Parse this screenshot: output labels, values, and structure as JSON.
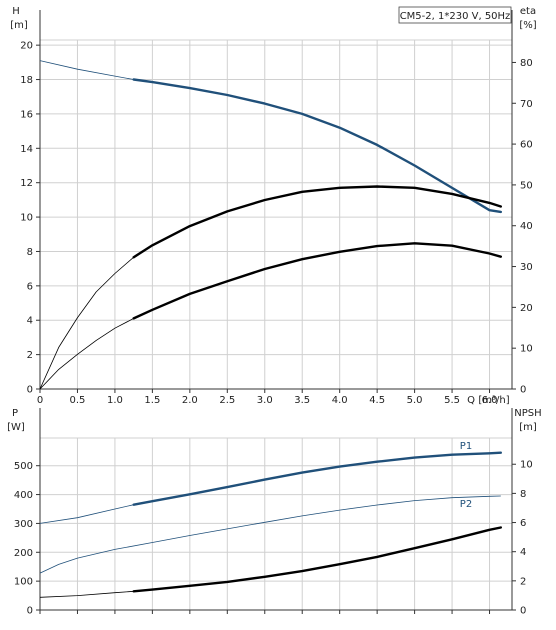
{
  "chart_data": [
    {
      "type": "line",
      "legend_box": "CM5-2, 1*230 V, 50Hz",
      "xlabel": "Q",
      "xunit": "[m³/h]",
      "xlim": [
        0,
        6.3
      ],
      "xticks": [
        0,
        0.5,
        1.0,
        1.5,
        2.0,
        2.5,
        3.0,
        3.5,
        4.0,
        4.5,
        5.0,
        5.5,
        6.0
      ],
      "xtick_labels": [
        "0",
        "0.5",
        "1.0",
        "1.5",
        "2.0",
        "2.5",
        "3.0",
        "3.5",
        "4.0",
        "4.5",
        "5.0",
        "5.5",
        "6.0"
      ],
      "y_left": {
        "label": "H",
        "unit": "[m]",
        "lim": [
          0,
          20.3
        ],
        "ticks": [
          0,
          2,
          4,
          6,
          8,
          10,
          12,
          14,
          16,
          18,
          20
        ]
      },
      "y_right": {
        "label": "eta",
        "unit": "[%]",
        "lim": [
          0,
          85.5
        ],
        "ticks": [
          0,
          10,
          20,
          30,
          40,
          50,
          60,
          70,
          80
        ]
      },
      "grid": true,
      "series": [
        {
          "axis": "left",
          "color": "#20507a",
          "x": [
            0,
            0.5,
            1.0,
            1.25,
            1.5,
            2.0,
            2.5,
            3.0,
            3.5,
            4.0,
            4.5,
            5.0,
            5.5,
            6.0,
            6.15
          ],
          "y": [
            19.1,
            18.6,
            18.2,
            18.0,
            17.85,
            17.5,
            17.1,
            16.6,
            16.0,
            15.2,
            14.2,
            13.0,
            11.7,
            10.4,
            10.3
          ],
          "operating_range": [
            1.25,
            6.15
          ]
        },
        {
          "axis": "right",
          "x": [
            0,
            0.25,
            0.5,
            0.75,
            1.0,
            1.25,
            1.5,
            2.0,
            2.5,
            3.0,
            3.5,
            4.0,
            4.5,
            5.0,
            5.5,
            6.0,
            6.15
          ],
          "y": [
            0,
            10.2,
            17.5,
            23.8,
            28.3,
            32.3,
            35.2,
            39.9,
            43.5,
            46.3,
            48.3,
            49.3,
            49.6,
            49.3,
            47.8,
            45.6,
            44.7
          ],
          "operating_range": [
            1.25,
            6.15
          ]
        },
        {
          "axis": "right",
          "x": [
            0,
            0.25,
            0.5,
            0.75,
            1.0,
            1.25,
            1.5,
            2.0,
            2.5,
            3.0,
            3.5,
            4.0,
            4.5,
            5.0,
            5.5,
            6.0,
            6.15
          ],
          "y": [
            0,
            4.8,
            8.5,
            11.9,
            14.9,
            17.3,
            19.4,
            23.3,
            26.4,
            29.4,
            31.8,
            33.6,
            35.0,
            35.7,
            35.1,
            33.2,
            32.4
          ],
          "operating_range": [
            1.25,
            6.15
          ]
        }
      ]
    },
    {
      "type": "line",
      "xlim": [
        0,
        6.3
      ],
      "y_left": {
        "label": "P",
        "unit": "[W]",
        "lim": [
          0,
          596
        ],
        "ticks": [
          0,
          100,
          200,
          300,
          400,
          500
        ]
      },
      "y_right": {
        "label": "NPSH",
        "unit": "[m]",
        "lim": [
          0,
          11.8
        ],
        "ticks": [
          0,
          2,
          4,
          6,
          8,
          10
        ]
      },
      "grid": true,
      "series": [
        {
          "name": "P1",
          "axis": "left",
          "color": "#20507a",
          "x": [
            0,
            0.5,
            1.0,
            1.25,
            1.5,
            2.0,
            2.5,
            3.0,
            3.5,
            4.0,
            4.5,
            5.0,
            5.5,
            6.0,
            6.15
          ],
          "y": [
            300,
            320,
            350,
            365,
            377,
            401,
            426,
            452,
            476,
            497,
            514,
            528,
            538,
            543,
            545
          ],
          "operating_range": [
            1.25,
            6.15
          ]
        },
        {
          "name": "P2",
          "axis": "left",
          "color": "#20507a",
          "x": [
            0,
            0.25,
            0.5,
            1.0,
            1.5,
            2.0,
            2.5,
            3.0,
            3.5,
            4.0,
            4.5,
            5.0,
            5.5,
            6.0,
            6.15
          ],
          "y": [
            128,
            158,
            180,
            210,
            234,
            258,
            281,
            304,
            326,
            346,
            364,
            379,
            389,
            394,
            395
          ]
        },
        {
          "axis": "right",
          "x": [
            0,
            0.5,
            1.0,
            1.25,
            1.5,
            2.0,
            2.5,
            3.0,
            3.5,
            4.0,
            4.5,
            5.0,
            5.5,
            6.0,
            6.15
          ],
          "y": [
            0.87,
            0.99,
            1.19,
            1.28,
            1.4,
            1.66,
            1.93,
            2.28,
            2.67,
            3.14,
            3.64,
            4.24,
            4.85,
            5.5,
            5.66
          ],
          "operating_range": [
            1.25,
            6.15
          ]
        }
      ]
    }
  ]
}
